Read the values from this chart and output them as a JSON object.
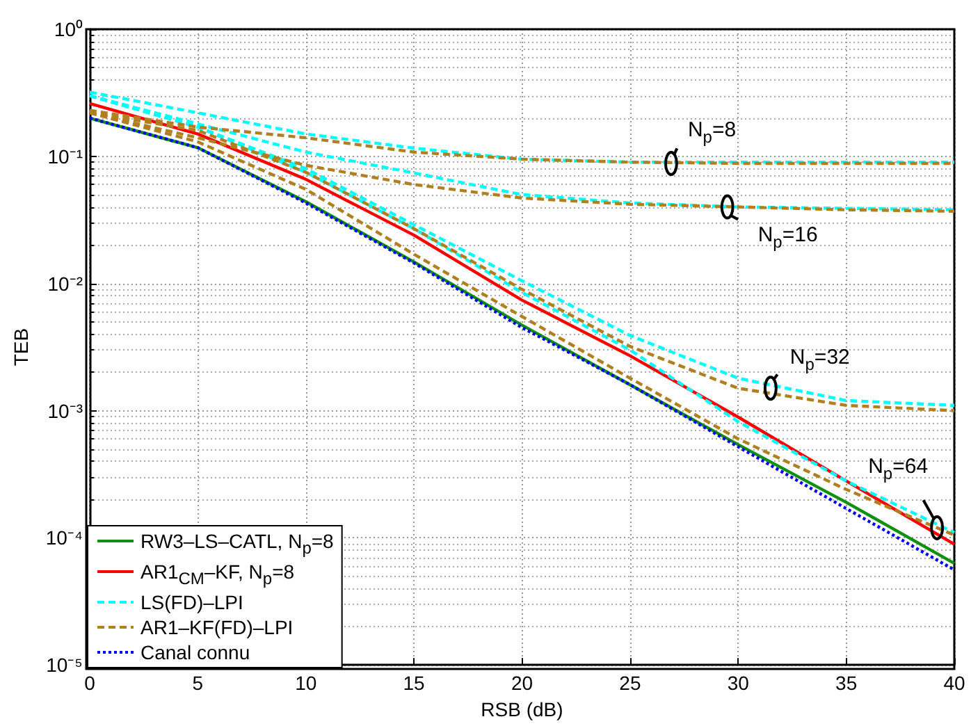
{
  "chart_data": {
    "type": "line",
    "xlabel": "RSB (dB)",
    "ylabel": "TEB",
    "log": "y",
    "grid": true,
    "legend": "bottom left",
    "marker": "none",
    "x": [
      0,
      5,
      10,
      15,
      20,
      25,
      30,
      35,
      40
    ],
    "xlim": [
      0,
      40
    ],
    "xticks": [
      0,
      5,
      10,
      15,
      20,
      25,
      30,
      35,
      40
    ],
    "ylim": [
      1e-05,
      1
    ],
    "yticks": [
      {
        "value": 1e-05,
        "label": "10⁻⁵"
      },
      {
        "value": 0.0001,
        "label": "10⁻⁴"
      },
      {
        "value": 0.001,
        "label": "10⁻³"
      },
      {
        "value": 0.01,
        "label": "10⁻²"
      },
      {
        "value": 0.1,
        "label": "10⁻¹"
      },
      {
        "value": 1,
        "label": "10⁰"
      }
    ],
    "series": [
      {
        "name": "RW3–LS–CATL, N$_{p}$=8",
        "color": "#109010",
        "line_style": "solid",
        "values": [
          0.2,
          0.117,
          0.044,
          0.0148,
          0.0047,
          0.0016,
          0.00054,
          0.00019,
          6.3e-05
        ]
      },
      {
        "name": "AR1$_{CM}$–KF, N$_{p}$=8",
        "color": "#ff0000",
        "line_style": "solid",
        "values": [
          0.26,
          0.15,
          0.066,
          0.024,
          0.0074,
          0.0027,
          0.00089,
          0.00028,
          8.9e-05
        ]
      },
      {
        "name": "LS(FD)–LPI",
        "color": "#00ffff",
        "line_style": "dashed",
        "values": [
          0.32,
          0.22,
          0.15,
          0.116,
          0.095,
          0.09,
          0.09,
          0.09,
          0.09
        ]
      },
      {
        "color": "#00ffff",
        "line_style": "dashed",
        "values": [
          0.3,
          0.18,
          0.108,
          0.074,
          0.05,
          0.043,
          0.04,
          0.039,
          0.038
        ]
      },
      {
        "color": "#00ffff",
        "line_style": "dashed",
        "values": [
          0.3,
          0.17,
          0.08,
          0.029,
          0.0105,
          0.0039,
          0.0018,
          0.0012,
          0.0011
        ]
      },
      {
        "color": "#00ffff",
        "line_style": "dashed",
        "values": [
          0.3,
          0.17,
          0.075,
          0.027,
          0.0085,
          0.003,
          0.00082,
          0.00028,
          0.00011
        ]
      },
      {
        "name": "AR1–KF(FD)–LPI",
        "color": "#b08020",
        "line_style": "dashed",
        "values": [
          0.23,
          0.17,
          0.14,
          0.108,
          0.095,
          0.09,
          0.088,
          0.088,
          0.088
        ]
      },
      {
        "color": "#b08020",
        "line_style": "dashed",
        "values": [
          0.22,
          0.14,
          0.085,
          0.06,
          0.047,
          0.042,
          0.04,
          0.038,
          0.037
        ]
      },
      {
        "color": "#b08020",
        "line_style": "dashed",
        "values": [
          0.22,
          0.16,
          0.075,
          0.027,
          0.009,
          0.0032,
          0.0015,
          0.0011,
          0.001
        ]
      },
      {
        "color": "#b08020",
        "line_style": "dashed",
        "values": [
          0.22,
          0.13,
          0.055,
          0.017,
          0.0055,
          0.0018,
          0.0006,
          0.00024,
          0.000105
        ]
      },
      {
        "name": "Canal connu",
        "color": "#0000ff",
        "line_style": "dotted",
        "values": [
          0.2,
          0.117,
          0.043,
          0.0145,
          0.0045,
          0.0016,
          0.00052,
          0.00017,
          5.6e-05
        ]
      }
    ],
    "annotations": [
      {
        "text": "N$_{p}$=8",
        "x": 26.9,
        "y": 0.088
      },
      {
        "text": "N$_{p}$=16",
        "x": 29.5,
        "y": 0.04
      },
      {
        "text": "N$_{p}$=32",
        "x": 31.5,
        "y": 0.0015
      },
      {
        "text": "N$_{p}$=64",
        "x": 39.2,
        "y": 0.00012
      }
    ]
  }
}
